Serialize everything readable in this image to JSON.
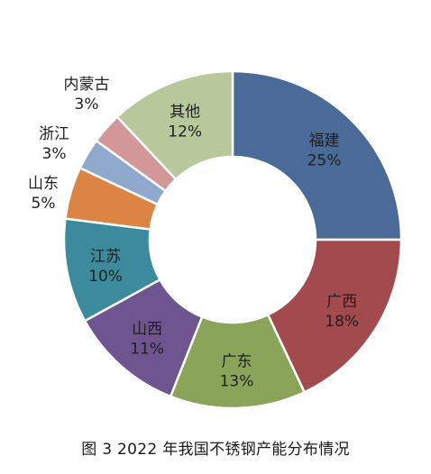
{
  "caption": "图 3  2022 年我国不锈钢产能分布情况",
  "chart_data": {
    "type": "pie",
    "donut": true,
    "title": "",
    "slices": [
      {
        "name": "福建",
        "value": 25,
        "label": "25%",
        "color": "#4a6b98"
      },
      {
        "name": "广西",
        "value": 18,
        "label": "18%",
        "color": "#a24a4e"
      },
      {
        "name": "广东",
        "value": 13,
        "label": "13%",
        "color": "#8aa55a"
      },
      {
        "name": "山西",
        "value": 11,
        "label": "11%",
        "color": "#6e5590"
      },
      {
        "name": "江苏",
        "value": 10,
        "label": "10%",
        "color": "#3b8b9c"
      },
      {
        "name": "山东",
        "value": 5,
        "label": "5%",
        "color": "#dc8444"
      },
      {
        "name": "浙江",
        "value": 3,
        "label": "3%",
        "color": "#8fa9cd"
      },
      {
        "name": "内蒙古",
        "value": 3,
        "label": "3%",
        "color": "#d39799"
      },
      {
        "name": "其他",
        "value": 12,
        "label": "12%",
        "color": "#b7c99a"
      }
    ],
    "start_angle": "12 o'clock",
    "direction": "clockwise",
    "outside_labels": [
      "内蒙古",
      "浙江",
      "山东"
    ]
  }
}
